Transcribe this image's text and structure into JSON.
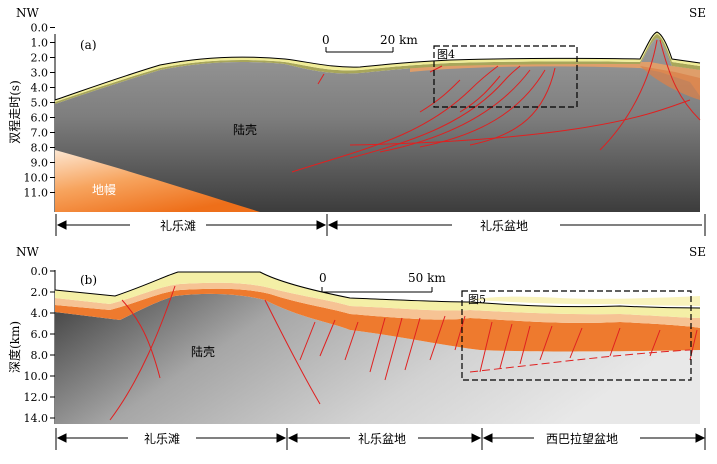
{
  "panel_a": {
    "tag": "(a)",
    "left_dir": "NW",
    "right_dir": "SE",
    "y_axis_label": "双程走时(s)",
    "y_ticks": [
      "0.0",
      "1.0",
      "2.0",
      "3.0",
      "4.0",
      "5.0",
      "6.0",
      "7.0",
      "8.0",
      "9.0",
      "10.0",
      "11.0"
    ],
    "scale_min": "0",
    "scale_max": "20 km",
    "inset_label": "图4",
    "crust_label": "陆壳",
    "mantle_label": "地幔",
    "sections": [
      "礼乐滩",
      "礼乐盆地"
    ]
  },
  "panel_b": {
    "tag": "(b)",
    "left_dir": "NW",
    "right_dir": "SE",
    "y_axis_label": "深度(km)",
    "y_ticks": [
      "0.0",
      "2.0",
      "4.0",
      "6.0",
      "8.0",
      "10.0",
      "12.0",
      "14.0"
    ],
    "scale_min": "0",
    "scale_max": "50 km",
    "inset_label": "图5",
    "crust_label": "陆壳",
    "sections": [
      "礼乐滩",
      "礼乐盆地",
      "西巴拉望盆地"
    ]
  }
}
